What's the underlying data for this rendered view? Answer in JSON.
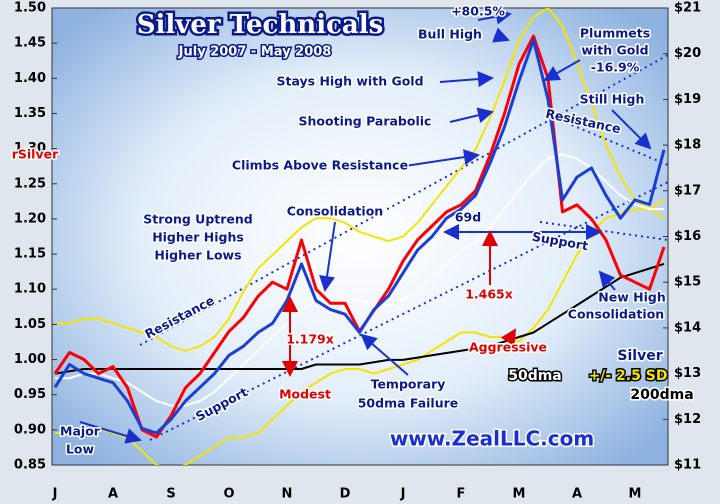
{
  "chart_data": {
    "type": "line",
    "title": "Silver Technicals",
    "subtitle": "July 2007 - May 2008",
    "source": "www.ZealLLC.com",
    "categories": [
      "J",
      null,
      null,
      null,
      "A",
      null,
      null,
      null,
      "S",
      null,
      null,
      null,
      "O",
      null,
      null,
      null,
      "N",
      null,
      null,
      null,
      "D",
      null,
      null,
      null,
      "J",
      null,
      null,
      null,
      "F",
      null,
      null,
      null,
      "M",
      null,
      null,
      null,
      "A",
      null,
      null,
      null,
      "M",
      null,
      null
    ],
    "ylim": [
      0.85,
      1.5
    ],
    "yticks": [
      {
        "value": 1.5,
        "label": "1.50"
      },
      1.45,
      {
        "value": 1.4,
        "label": "1.40"
      },
      1.35,
      {
        "value": 1.3,
        "label": "1.30"
      },
      1.25,
      {
        "value": 1.2,
        "label": "1.20"
      },
      1.15,
      {
        "value": 1.1,
        "label": "1.10"
      },
      1.05,
      {
        "value": 1,
        "label": "1.00"
      },
      0.95,
      {
        "value": 0.9,
        "label": "0.90"
      },
      0.85
    ],
    "y2lim": [
      11,
      21
    ],
    "y2ticks": [
      {
        "value": 21,
        "label": "$21"
      },
      {
        "value": 20,
        "label": "$20"
      },
      {
        "value": 19,
        "label": "$19"
      },
      {
        "value": 18,
        "label": "$18"
      },
      {
        "value": 17,
        "label": "$17"
      },
      {
        "value": 16,
        "label": "$16"
      },
      {
        "value": 15,
        "label": "$15"
      },
      {
        "value": 14,
        "label": "$14"
      },
      {
        "value": 13,
        "label": "$13"
      },
      {
        "value": 12,
        "label": "$12"
      },
      {
        "value": 11,
        "label": "$11"
      }
    ],
    "series": [
      {
        "name": "+/- 2.5 SD",
        "color": "#f2e600",
        "axis": "y2",
        "values": [
          14.1,
          14.1,
          14.2,
          14.2,
          14.1,
          14.0,
          13.9,
          13.8,
          13.6,
          13.5,
          13.6,
          13.8,
          14.2,
          14.8,
          15.3,
          15.6,
          15.9,
          16.2,
          16.4,
          16.4,
          16.3,
          16.1,
          16.0,
          15.9,
          16.0,
          16.3,
          16.7,
          17.1,
          17.5,
          17.9,
          18.6,
          19.4,
          20.3,
          20.8,
          21.0,
          20.6,
          19.8,
          18.9,
          18.0,
          17.3,
          16.8,
          16.6,
          16.4
        ],
        "lower": [
          11.7,
          11.7,
          11.8,
          11.8,
          11.7,
          11.6,
          11.3,
          11.0,
          10.9,
          11.0,
          11.2,
          11.4,
          11.6,
          11.6,
          11.7,
          12.0,
          12.3,
          12.6,
          12.8,
          13.0,
          13.1,
          13.1,
          13.0,
          13.1,
          13.2,
          13.3,
          13.5,
          13.7,
          13.9,
          13.9,
          13.8,
          13.8,
          13.7,
          14.0,
          14.4,
          15.0,
          15.6,
          16.1,
          16.4,
          16.5,
          16.6,
          16.6,
          16.8
        ]
      },
      {
        "name": "50dma",
        "color": "#ffffff",
        "axis": "y2",
        "values": [
          12.9,
          12.9,
          13.0,
          13.0,
          12.9,
          12.8,
          12.6,
          12.4,
          12.3,
          12.3,
          12.4,
          12.6,
          12.9,
          13.2,
          13.5,
          13.8,
          14.1,
          14.4,
          14.6,
          14.7,
          14.7,
          14.6,
          14.5,
          14.5,
          14.6,
          14.8,
          15.1,
          15.4,
          15.7,
          15.9,
          16.2,
          16.6,
          17.0,
          17.4,
          17.7,
          17.8,
          17.7,
          17.5,
          17.2,
          16.9,
          16.7,
          16.6,
          16.6
        ]
      },
      {
        "name": "200dma",
        "color": "#000000",
        "axis": "y2",
        "values": [
          13.0,
          13.05,
          13.1,
          13.1,
          13.1,
          13.1,
          13.1,
          13.1,
          13.1,
          13.1,
          13.1,
          13.1,
          13.1,
          13.1,
          13.1,
          13.1,
          13.1,
          13.1,
          13.2,
          13.2,
          13.2,
          13.2,
          13.25,
          13.3,
          13.3,
          13.35,
          13.4,
          13.45,
          13.5,
          13.55,
          13.6,
          13.7,
          13.8,
          13.9,
          14.1,
          14.3,
          14.5,
          14.7,
          14.9,
          15.1,
          15.2,
          15.3,
          15.4
        ]
      },
      {
        "name": "rSilver",
        "color": "#ff0000",
        "axis": "y",
        "values": [
          0.98,
          1.01,
          1.0,
          0.98,
          0.99,
          0.96,
          0.9,
          0.89,
          0.92,
          0.96,
          0.98,
          1.01,
          1.04,
          1.06,
          1.09,
          1.11,
          1.1,
          1.17,
          1.1,
          1.08,
          1.08,
          1.04,
          1.07,
          1.1,
          1.14,
          1.17,
          1.19,
          1.21,
          1.22,
          1.24,
          1.29,
          1.35,
          1.42,
          1.46,
          1.4,
          1.21,
          1.22,
          1.2,
          1.17,
          1.12,
          1.11,
          1.1,
          1.16
        ]
      },
      {
        "name": "Silver",
        "color": "#1a3fd6",
        "axis": "y2",
        "values": [
          12.7,
          13.2,
          13.0,
          12.9,
          12.8,
          12.4,
          11.8,
          11.7,
          12.0,
          12.4,
          12.7,
          13.0,
          13.4,
          13.6,
          13.9,
          14.1,
          14.6,
          15.4,
          14.6,
          14.4,
          14.3,
          13.9,
          14.4,
          14.7,
          15.2,
          15.7,
          16.0,
          16.4,
          16.6,
          16.9,
          17.6,
          18.4,
          19.4,
          20.3,
          19.0,
          16.8,
          17.3,
          17.5,
          16.9,
          16.4,
          16.8,
          16.7,
          17.9
        ]
      }
    ],
    "annotations": [
      {
        "text": "+80.5%",
        "color": "#0a1a8a"
      },
      {
        "text": "Bull High",
        "color": "#0a1a8a"
      },
      {
        "text": "Plummets",
        "color": "#0a1a8a"
      },
      {
        "text": "with Gold",
        "color": "#0a1a8a"
      },
      {
        "text": "-16.9%",
        "color": "#0a1a8a"
      },
      {
        "text": "Stays High with Gold",
        "color": "#0a1a8a"
      },
      {
        "text": "Shooting Parabolic",
        "color": "#0a1a8a"
      },
      {
        "text": "Still High",
        "color": "#0a1a8a"
      },
      {
        "text": "Resistance",
        "color": "#0a1a8a"
      },
      {
        "text": "Climbs Above Resistance",
        "color": "#0a1a8a"
      },
      {
        "text": "rSilver",
        "color": "#e00000"
      },
      {
        "text": "Strong Uptrend",
        "color": "#0a1a8a"
      },
      {
        "text": "Higher Highs",
        "color": "#0a1a8a"
      },
      {
        "text": "Higher Lows",
        "color": "#0a1a8a"
      },
      {
        "text": "Consolidation",
        "color": "#0a1a8a"
      },
      {
        "text": "69d",
        "color": "#0a1a8a"
      },
      {
        "text": "Support",
        "color": "#0a1a8a"
      },
      {
        "text": "Resistance",
        "color": "#0a1a8a"
      },
      {
        "text": "1.179x",
        "color": "#e00000"
      },
      {
        "text": "1.465x",
        "color": "#e00000"
      },
      {
        "text": "New High",
        "color": "#0a1a8a"
      },
      {
        "text": "Consolidation",
        "color": "#0a1a8a"
      },
      {
        "text": "Aggressive",
        "color": "#e00000"
      },
      {
        "text": "Modest",
        "color": "#e00000"
      },
      {
        "text": "Support",
        "color": "#0a1a8a"
      },
      {
        "text": "Temporary",
        "color": "#0a1a8a"
      },
      {
        "text": "50dma Failure",
        "color": "#0a1a8a"
      },
      {
        "text": "Major",
        "color": "#0a1a8a"
      },
      {
        "text": "Low",
        "color": "#0a1a8a"
      }
    ]
  }
}
